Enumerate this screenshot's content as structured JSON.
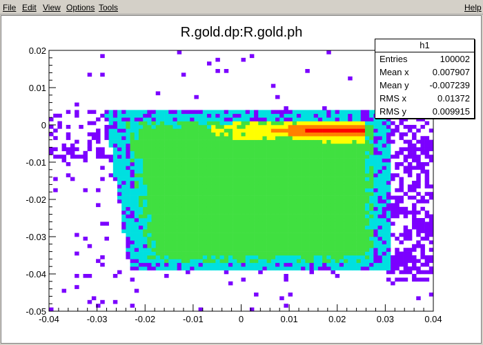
{
  "menu": {
    "file": "File",
    "edit": "Edit",
    "view": "View",
    "options": "Options",
    "tools": "Tools",
    "help": "Help"
  },
  "plot": {
    "title": "R.gold.dp:R.gold.ph"
  },
  "stats": {
    "title": "h1",
    "rows": [
      {
        "label": "Entries",
        "value": "100002"
      },
      {
        "label": "Mean x",
        "value": "0.007907"
      },
      {
        "label": "Mean y",
        "value": "-0.007239"
      },
      {
        "label": "RMS x",
        "value": "0.01372"
      },
      {
        "label": "RMS y",
        "value": "0.009915"
      }
    ]
  },
  "chart_data": {
    "type": "heatmap",
    "title": "R.gold.dp:R.gold.ph",
    "xlim": [
      -0.04,
      0.04
    ],
    "ylim": [
      -0.05,
      0.02
    ],
    "x_ticks": [
      "-0.04",
      "-0.03",
      "-0.02",
      "-0.01",
      "0",
      "0.01",
      "0.02",
      "0.03",
      "0.04"
    ],
    "y_ticks": [
      "-0.05",
      "-0.04",
      "-0.03",
      "-0.02",
      "-0.01",
      "0",
      "0.01",
      "0.02"
    ],
    "colors": {
      "low": "#7b00ff",
      "mid_low": "#00e0e0",
      "mid": "#40e040",
      "mid_high": "#ffff00",
      "high": "#ff8000",
      "peak": "#ff0000"
    },
    "grid": false
  }
}
